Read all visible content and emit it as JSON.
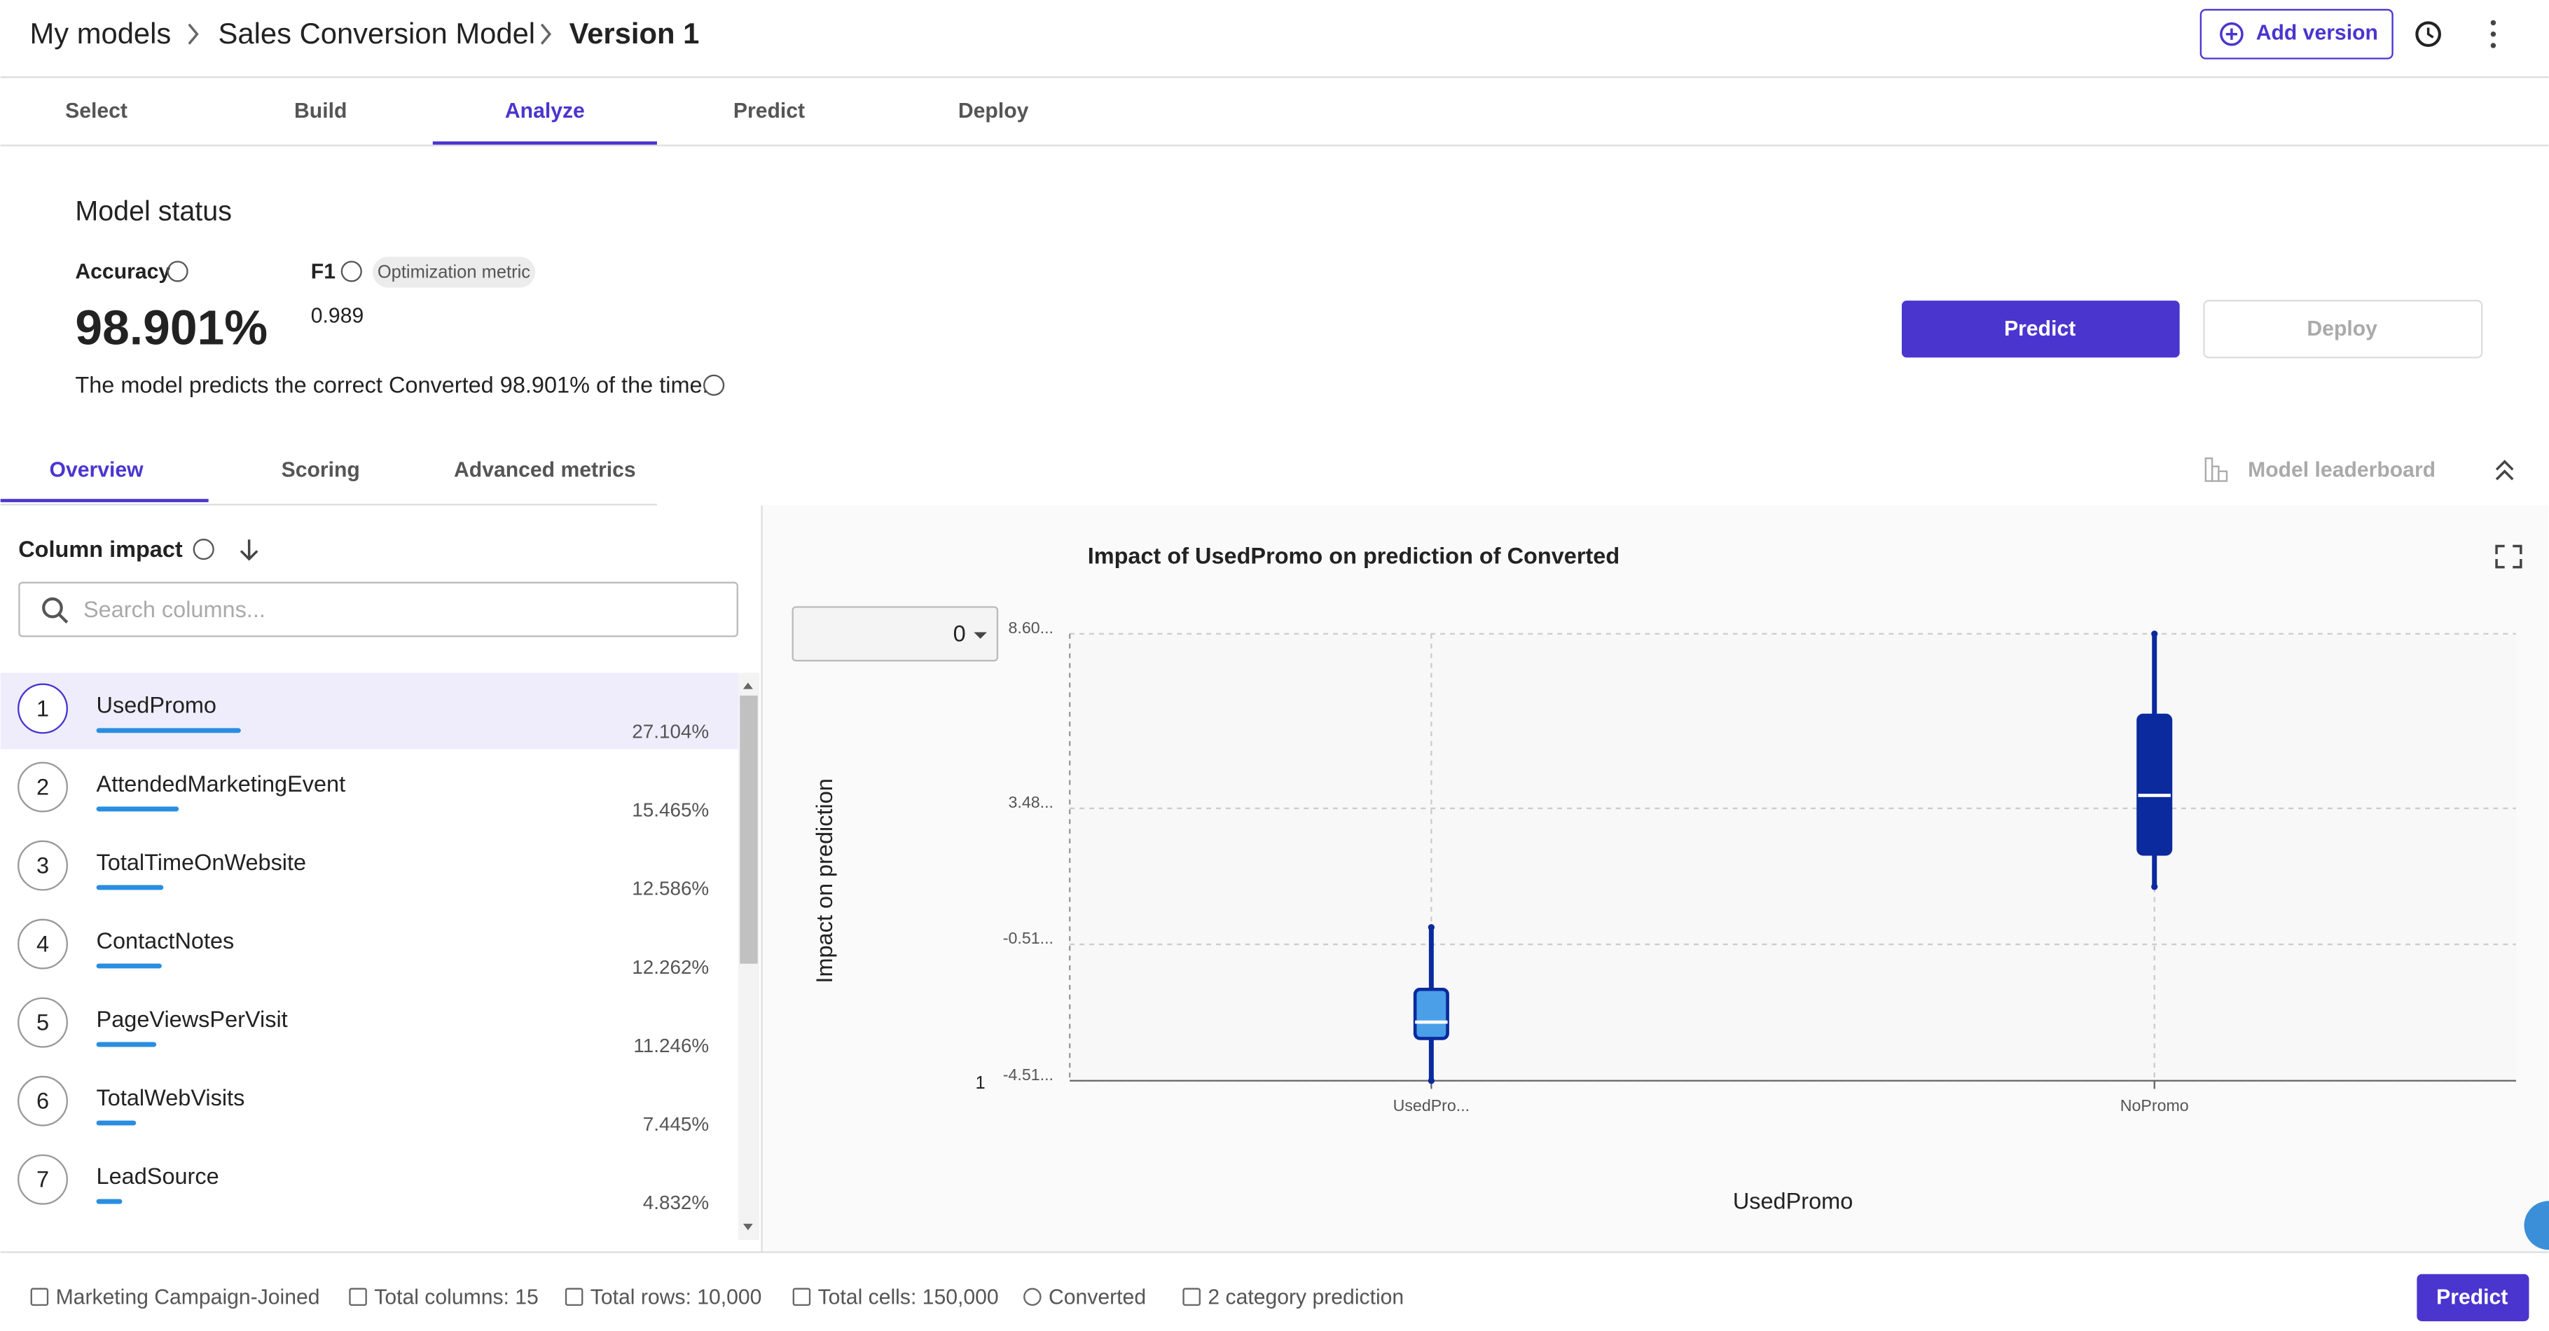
{
  "breadcrumbs": [
    "My models",
    "Sales Conversion Model",
    "Version 1"
  ],
  "add_version": "Add version",
  "tabs": [
    "Select",
    "Build",
    "Analyze",
    "Predict",
    "Deploy"
  ],
  "status": {
    "title": "Model status",
    "accuracy_label": "Accuracy",
    "accuracy": "98.901%",
    "f1_label": "F1",
    "f1_chip": "Optimization metric",
    "f1": "0.989",
    "description": "The model predicts the correct Converted 98.901% of the time.",
    "predict": "Predict",
    "deploy": "Deploy"
  },
  "subtabs": [
    "Overview",
    "Scoring",
    "Advanced metrics"
  ],
  "leaderboard": "Model leaderboard",
  "column_impact": {
    "title": "Column impact",
    "search_placeholder": "Search columns...",
    "rows": [
      {
        "rank": "1",
        "name": "UsedPromo",
        "impact": "27.104%"
      },
      {
        "rank": "2",
        "name": "AttendedMarketingEvent",
        "impact": "15.465%"
      },
      {
        "rank": "3",
        "name": "TotalTimeOnWebsite",
        "impact": "12.586%"
      },
      {
        "rank": "4",
        "name": "ContactNotes",
        "impact": "12.262%"
      },
      {
        "rank": "5",
        "name": "PageViewsPerVisit",
        "impact": "11.246%"
      },
      {
        "rank": "6",
        "name": "TotalWebVisits",
        "impact": "7.445%"
      },
      {
        "rank": "7",
        "name": "LeadSource",
        "impact": "4.832%"
      }
    ]
  },
  "chart_data": {
    "type": "box",
    "title": "Impact of UsedPromo on prediction of Converted",
    "dropdown": "0",
    "corner_label": "1",
    "x_label": "UsedPromo",
    "y_label": "Impact on prediction",
    "categories": [
      "UsedPro...",
      "NoPromo"
    ],
    "boxes": [
      {
        "min": -4.51,
        "q1": -3.27,
        "median": -2.79,
        "q3": -1.83,
        "max": -0.01
      },
      {
        "min": 1.18,
        "q1": 2.14,
        "median": 3.86,
        "q3": 6.21,
        "max": 8.6
      }
    ],
    "colors": [
      "#4a9fe8",
      "#0a2a9e"
    ],
    "whisker_color": "#0a2a9e",
    "ylim": [
      -4.51,
      8.6
    ],
    "yticks": [
      {
        "value": 8.6,
        "label": "8.60..."
      },
      {
        "value": 3.48,
        "label": "3.48..."
      },
      {
        "value": -0.51,
        "label": "-0.51..."
      },
      {
        "value": -4.51,
        "label": "-4.51..."
      }
    ],
    "grid": true
  },
  "footer": [
    "Marketing Campaign-Joined",
    "Total columns: 15",
    "Total rows: 10,000",
    "Total cells: 150,000",
    "Converted",
    "2 category prediction"
  ],
  "footer_predict": "Predict"
}
